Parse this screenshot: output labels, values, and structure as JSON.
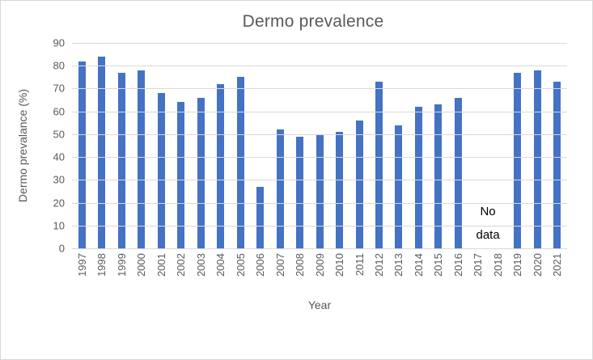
{
  "frame": {
    "background_color": "#ffffff",
    "border_color": "#d9d9d9"
  },
  "chart_data": {
    "type": "bar",
    "title": "Dermo prevalence",
    "xlabel": "Year",
    "ylabel": "Dermo prevalance (%)",
    "categories": [
      "1997",
      "1998",
      "1999",
      "2000",
      "2001",
      "2002",
      "2003",
      "2004",
      "2005",
      "2006",
      "2007",
      "2008",
      "2009",
      "2010",
      "2011",
      "2012",
      "2013",
      "2014",
      "2015",
      "2016",
      "2017",
      "2018",
      "2019",
      "2020",
      "2021"
    ],
    "values": [
      82,
      84,
      77,
      78,
      68,
      64,
      66,
      72,
      75,
      27,
      52,
      49,
      50,
      51,
      56,
      73,
      54,
      62,
      63,
      66,
      null,
      null,
      77,
      78,
      73
    ],
    "ylim": [
      0,
      90
    ],
    "yticks": [
      0,
      10,
      20,
      30,
      40,
      50,
      60,
      70,
      80,
      90
    ],
    "grid": true,
    "legend": false,
    "bar_color": "#4472c4",
    "gridline_color": "#d9d9d9",
    "text_color": "#595959",
    "annotation": {
      "lines": [
        "No",
        "data"
      ],
      "color": "#000000",
      "between_categories": [
        "2017",
        "2018"
      ]
    }
  }
}
